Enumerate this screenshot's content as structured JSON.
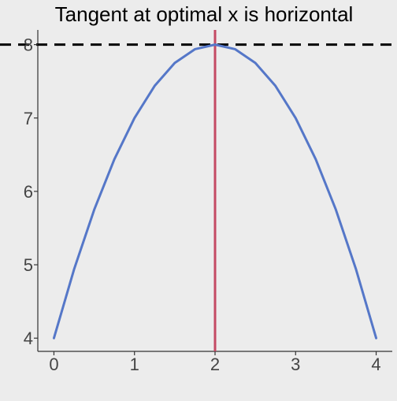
{
  "chart_data": {
    "type": "line",
    "title": "Tangent at optimal x is horizontal",
    "xlabel": "",
    "ylabel": "",
    "xlim": [
      -0.2,
      4.2
    ],
    "ylim": [
      3.82,
      8.2
    ],
    "x_ticks": [
      0,
      1,
      2,
      3,
      4
    ],
    "y_ticks": [
      4,
      5,
      6,
      7,
      8
    ],
    "grid": false,
    "series": [
      {
        "kind": "curve",
        "color": "#5577c8",
        "x": [
          0,
          0.25,
          0.5,
          0.75,
          1,
          1.25,
          1.5,
          1.75,
          2,
          2.25,
          2.5,
          2.75,
          3,
          3.25,
          3.5,
          3.75,
          4
        ],
        "y": [
          4,
          4.9375,
          5.75,
          6.4375,
          7,
          7.4375,
          7.75,
          7.9375,
          8,
          7.9375,
          7.75,
          7.4375,
          7,
          6.4375,
          5.75,
          4.9375,
          4
        ]
      }
    ],
    "reference_lines": [
      {
        "kind": "horizontal",
        "y": 8,
        "style": "dashed",
        "color": "#000000"
      },
      {
        "kind": "vertical",
        "x": 2,
        "style": "solid",
        "color": "#c44a64"
      }
    ],
    "colors": {
      "background": "#ececec",
      "axis": "#333333",
      "tick_text": "#444444"
    }
  }
}
